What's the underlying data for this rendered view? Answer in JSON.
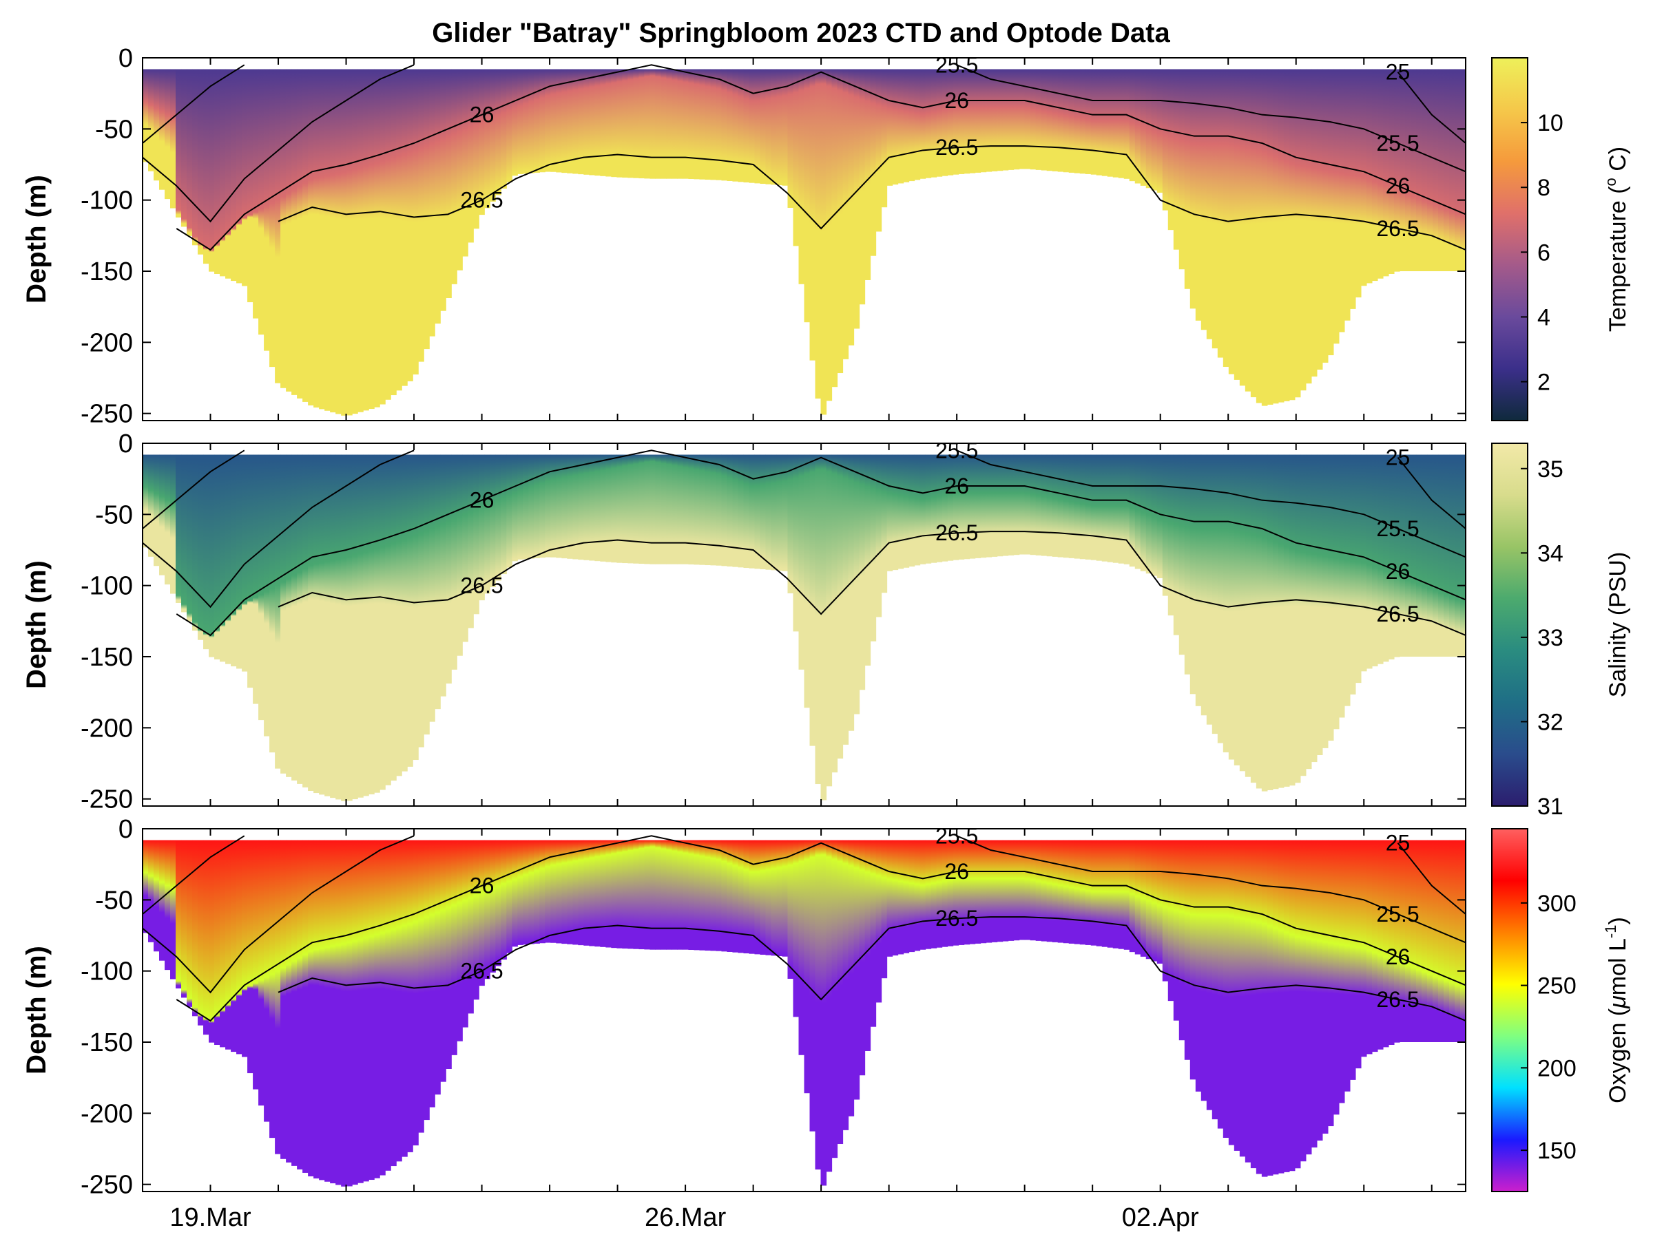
{
  "title": "Glider \"Batray\" Springbloom 2023 CTD and Optode Data",
  "chart_data": [
    {
      "type": "heatmap",
      "variable": "Temperature",
      "ylabel": "Depth (m)",
      "colorbar_label": "Temperature (°C)",
      "colorbar_label_parts": [
        "Temperature (",
        "o",
        " C)"
      ],
      "colorbar_ticks": [
        2,
        4,
        6,
        8,
        10
      ],
      "clim": [
        0.8,
        12
      ],
      "colormap": [
        "#0f2a3c",
        "#3b2f8a",
        "#6a4a9c",
        "#a45a8a",
        "#e0706a",
        "#f59a3c",
        "#f5c84a",
        "#eef05a"
      ],
      "profile_values": {
        "surface": 3.0,
        "mid": 7.0,
        "deep": 11.5
      }
    },
    {
      "type": "heatmap",
      "variable": "Salinity",
      "ylabel": "Depth (m)",
      "colorbar_label": "Salinity (PSU)",
      "colorbar_ticks": [
        31,
        32,
        33,
        34,
        35
      ],
      "clim": [
        31,
        35.3
      ],
      "colormap": [
        "#2b1d6e",
        "#2a4c8c",
        "#1f6e86",
        "#2a8c80",
        "#4caa6e",
        "#98c466",
        "#d8dc8c",
        "#f2e9a8"
      ],
      "profile_values": {
        "surface": 31.8,
        "mid": 33.4,
        "deep": 35.1
      }
    },
    {
      "type": "heatmap",
      "variable": "Oxygen",
      "ylabel": "Depth (m)",
      "colorbar_label": "Oxygen (μmol L⁻¹)",
      "colorbar_label_parts": [
        "Oxygen (",
        "μ",
        "mol L",
        "-1",
        ")"
      ],
      "colorbar_ticks": [
        150,
        200,
        250,
        300
      ],
      "clim": [
        125,
        345
      ],
      "colormap": [
        "#cc1fcc",
        "#1a1aff",
        "#00e0ff",
        "#80ff80",
        "#ffff00",
        "#ff8000",
        "#ff0000",
        "#ff6060"
      ],
      "profile_values": {
        "surface": 320,
        "mid": 240,
        "deep": 140
      }
    }
  ],
  "x_axis": {
    "ticks": [
      "19.Mar",
      "26.Mar",
      "02.Apr"
    ],
    "xlim": [
      "2023-03-18 00:00",
      "2023-04-06 12:00"
    ],
    "tick_dates": [
      "2023-03-19",
      "2023-03-26",
      "2023-04-02"
    ],
    "minor_tick_interval_days": 1
  },
  "y_axis": {
    "ylim": [
      -255,
      0
    ],
    "ticks": [
      0,
      -50,
      -100,
      -150,
      -200,
      -250
    ]
  },
  "isopycnals": {
    "levels": [
      "25",
      "25.5",
      "26",
      "26.5"
    ],
    "section": {
      "t": [
        "03-18 00:00",
        "03-18 12:00",
        "03-19 00:00",
        "03-19 12:00",
        "03-20 00:00",
        "03-20 12:00",
        "03-21 00:00",
        "03-21 12:00",
        "03-22 00:00",
        "03-22 12:00",
        "03-23 00:00",
        "03-23 12:00",
        "03-24 00:00",
        "03-24 12:00",
        "03-25 00:00",
        "03-25 12:00",
        "03-26 00:00",
        "03-26 12:00",
        "03-27 00:00",
        "03-27 12:00",
        "03-28 00:00",
        "03-28 12:00",
        "03-29 00:00",
        "03-29 12:00",
        "03-30 00:00",
        "03-30 12:00",
        "03-31 00:00",
        "03-31 12:00",
        "04-01 00:00",
        "04-01 12:00",
        "04-02 00:00",
        "04-02 12:00",
        "04-03 00:00",
        "04-03 12:00",
        "04-04 00:00",
        "04-04 12:00",
        "04-05 00:00",
        "04-05 12:00",
        "04-06 00:00",
        "04-06 12:00"
      ],
      "bottom": [
        -70,
        -110,
        -150,
        -160,
        -230,
        -245,
        -252,
        -245,
        -225,
        -170,
        -110,
        -82,
        -80,
        -82,
        -84,
        -85,
        -85,
        -86,
        -88,
        -90,
        -255,
        -195,
        -90,
        -85,
        -82,
        -80,
        -78,
        -80,
        -82,
        -85,
        -95,
        -180,
        -220,
        -245,
        -240,
        -210,
        -160,
        -150,
        -150,
        -150
      ],
      "d25": [
        -60,
        -40,
        -20,
        -5,
        null,
        null,
        null,
        null,
        null,
        null,
        null,
        null,
        null,
        null,
        null,
        null,
        null,
        null,
        null,
        null,
        null,
        null,
        null,
        null,
        null,
        null,
        null,
        null,
        null,
        null,
        null,
        null,
        null,
        null,
        null,
        null,
        null,
        -10,
        -40,
        -60
      ],
      "d25_5": [
        -70,
        -90,
        -115,
        -85,
        -65,
        -45,
        -30,
        -15,
        -5,
        null,
        null,
        null,
        null,
        null,
        null,
        null,
        null,
        null,
        null,
        null,
        null,
        null,
        null,
        null,
        -5,
        -15,
        -20,
        -25,
        -30,
        -30,
        -30,
        -32,
        -35,
        -40,
        -42,
        -45,
        -50,
        -60,
        -70,
        -80
      ],
      "d26": [
        null,
        -120,
        -135,
        -110,
        -95,
        -80,
        -75,
        -68,
        -60,
        -50,
        -40,
        -30,
        -20,
        -15,
        -10,
        -5,
        -10,
        -15,
        -25,
        -20,
        -10,
        -20,
        -30,
        -35,
        -30,
        -30,
        -30,
        -35,
        -40,
        -40,
        -50,
        -55,
        -55,
        -60,
        -70,
        -75,
        -80,
        -90,
        -100,
        -110
      ],
      "d26_5": [
        null,
        null,
        null,
        null,
        -115,
        -105,
        -110,
        -108,
        -112,
        -110,
        -100,
        -85,
        -75,
        -70,
        -68,
        -70,
        -70,
        -72,
        -75,
        -95,
        -120,
        -95,
        -70,
        -65,
        -63,
        -62,
        -62,
        -63,
        -65,
        -68,
        -100,
        -110,
        -115,
        -112,
        -110,
        -112,
        -115,
        -120,
        -125,
        -135
      ]
    }
  }
}
